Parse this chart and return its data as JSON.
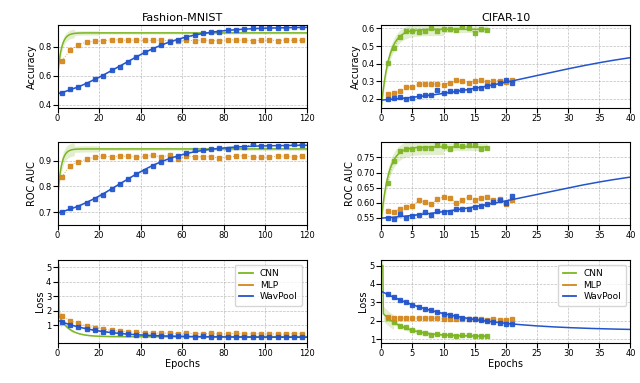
{
  "colors": {
    "cnn": "#7db523",
    "mlp": "#d4861a",
    "wavpool": "#2255cc"
  },
  "title_left": "Fashion-MNIST",
  "title_right": "CIFAR-10",
  "ylabel_acc": "Accuracy",
  "ylabel_roc": "ROC AUC",
  "ylabel_loss": "Loss",
  "xlabel": "Epochs",
  "fm_xlim": [
    0,
    120
  ],
  "cf_xlim": [
    0,
    40
  ],
  "fm_acc_ylim": [
    0.38,
    0.95
  ],
  "fm_roc_ylim": [
    0.65,
    0.97
  ],
  "fm_loss_ylim": [
    -0.2,
    5.5
  ],
  "cf_acc_ylim": [
    0.15,
    0.62
  ],
  "cf_roc_ylim": [
    0.525,
    0.8
  ],
  "cf_loss_ylim": [
    0.8,
    5.3
  ]
}
